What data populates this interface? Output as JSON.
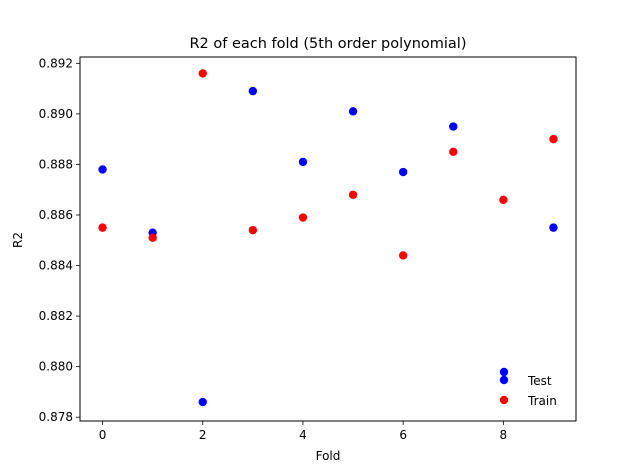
{
  "chart_data": {
    "type": "scatter",
    "title": "R2 of each fold (5th order polynomial)",
    "xlabel": "Fold",
    "ylabel": "R2",
    "xlim": [
      -0.45,
      9.45
    ],
    "ylim": [
      0.87785,
      0.89225
    ],
    "xticks": [
      0,
      2,
      4,
      6,
      8
    ],
    "yticks": [
      0.878,
      0.88,
      0.882,
      0.884,
      0.886,
      0.888,
      0.89,
      0.892
    ],
    "x": [
      0,
      1,
      2,
      3,
      4,
      5,
      6,
      7,
      8,
      9
    ],
    "series": [
      {
        "name": "Test",
        "color": "#0000ff",
        "values": [
          0.8878,
          0.8853,
          0.8786,
          0.8909,
          0.8881,
          0.8901,
          0.8877,
          0.8895,
          null,
          0.8855
        ]
      },
      {
        "name": "Train",
        "color": "#ff0000",
        "values": [
          0.8855,
          0.8851,
          0.8916,
          0.8854,
          0.8859,
          0.8868,
          0.8844,
          0.8885,
          0.8866,
          0.889
        ]
      }
    ],
    "legend": {
      "position": "lower-right"
    },
    "grid": false
  }
}
